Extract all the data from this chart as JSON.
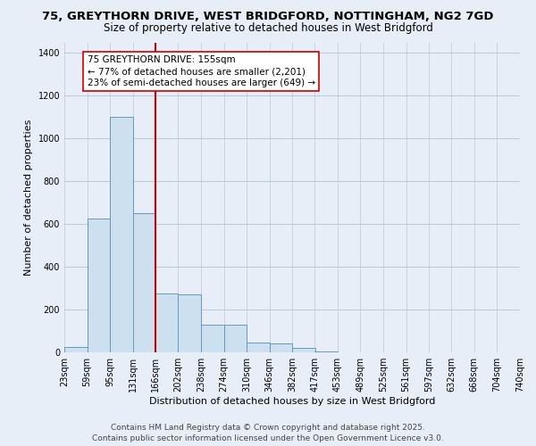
{
  "title_line1": "75, GREYTHORN DRIVE, WEST BRIDGFORD, NOTTINGHAM, NG2 7GD",
  "title_line2": "Size of property relative to detached houses in West Bridgford",
  "xlabel": "Distribution of detached houses by size in West Bridgford",
  "ylabel": "Number of detached properties",
  "bin_labels": [
    "23sqm",
    "59sqm",
    "95sqm",
    "131sqm",
    "166sqm",
    "202sqm",
    "238sqm",
    "274sqm",
    "310sqm",
    "346sqm",
    "382sqm",
    "417sqm",
    "453sqm",
    "489sqm",
    "525sqm",
    "561sqm",
    "597sqm",
    "632sqm",
    "668sqm",
    "704sqm",
    "740sqm"
  ],
  "bin_edges": [
    23,
    59,
    95,
    131,
    166,
    202,
    238,
    274,
    310,
    346,
    382,
    417,
    453,
    489,
    525,
    561,
    597,
    632,
    668,
    704,
    740
  ],
  "bar_heights": [
    25,
    625,
    1100,
    650,
    275,
    270,
    130,
    130,
    45,
    40,
    20,
    5,
    0,
    0,
    0,
    0,
    0,
    0,
    0,
    0
  ],
  "bar_color": "#cce0f0",
  "bar_edge_color": "#6699bb",
  "grid_color": "#b8c8d8",
  "background_color": "#e8eef8",
  "vline_color": "#cc0000",
  "vline_x": 166,
  "annotation_text": "75 GREYTHORN DRIVE: 155sqm\n← 77% of detached houses are smaller (2,201)\n23% of semi-detached houses are larger (649) →",
  "annotation_box_color": "#ffffff",
  "annotation_box_edge": "#cc0000",
  "ylim": [
    0,
    1450
  ],
  "yticks": [
    0,
    200,
    400,
    600,
    800,
    1000,
    1200,
    1400
  ],
  "footer_line1": "Contains HM Land Registry data © Crown copyright and database right 2025.",
  "footer_line2": "Contains public sector information licensed under the Open Government Licence v3.0.",
  "title_fontsize": 9.5,
  "subtitle_fontsize": 8.5,
  "axis_label_fontsize": 8,
  "tick_fontsize": 7,
  "annotation_fontsize": 7.5,
  "footer_fontsize": 6.5
}
